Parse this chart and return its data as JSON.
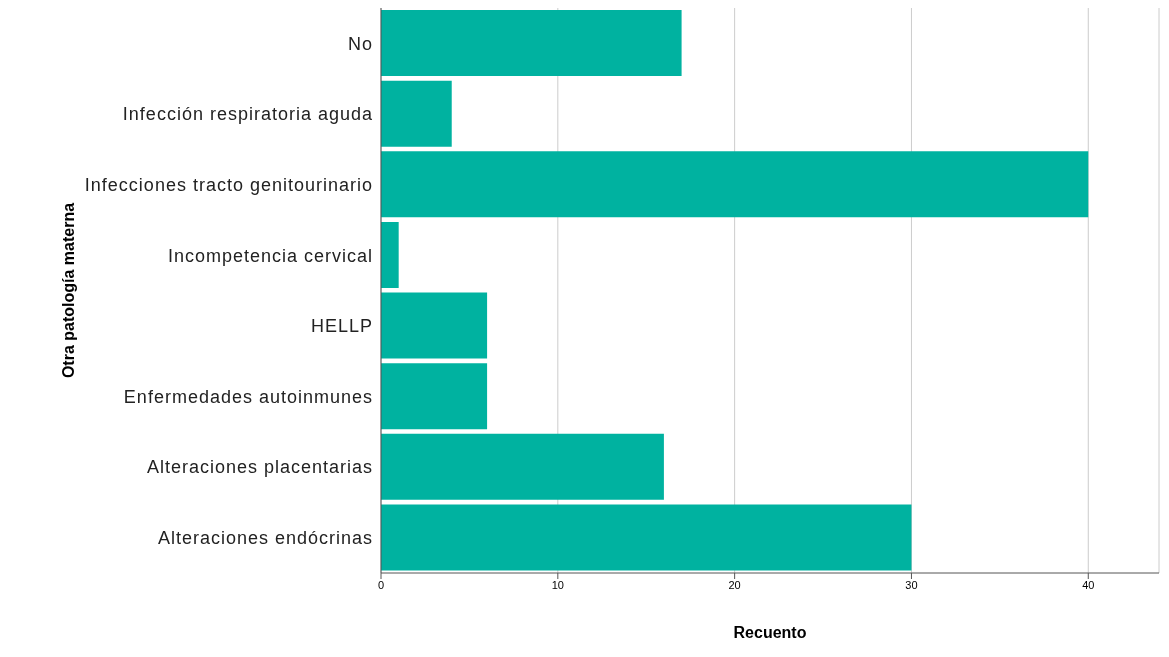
{
  "chart_data": {
    "type": "bar",
    "orientation": "horizontal",
    "xlabel": "Recuento",
    "ylabel": "Otra patología materna",
    "categories": [
      "No",
      "Infección respiratoria aguda",
      "Infecciones tracto genitourinario",
      "Incompetencia cervical",
      "HELLP",
      "Enfermedades autoinmunes",
      "Alteraciones placentarias",
      "Alteraciones endócrinas"
    ],
    "values": [
      17,
      4,
      40,
      1,
      6,
      6,
      16,
      30
    ],
    "color": "#00b2a0",
    "xlim": [
      0,
      44
    ],
    "xticks": [
      0,
      10,
      20,
      30,
      40
    ],
    "grid": "x"
  }
}
